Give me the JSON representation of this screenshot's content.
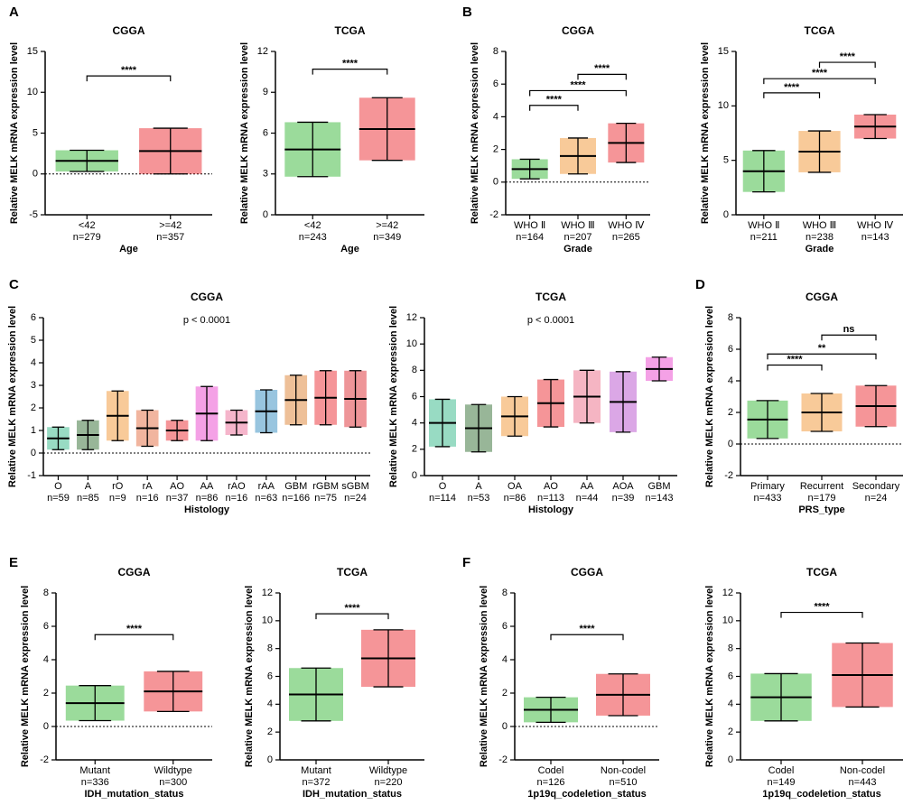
{
  "panels": [
    "A",
    "B",
    "C",
    "D",
    "E",
    "F"
  ],
  "chart_data": [
    {
      "type": "dot_summary",
      "title": "CGGA",
      "ylabel": "Relative MELK mRNA expression level",
      "xlabel": "Age",
      "categories": [
        "<42",
        ">=42"
      ],
      "n_labels": [
        "n=279",
        "n=357"
      ],
      "colors": [
        "#22b022",
        "#e8141b"
      ],
      "values": [
        1.6,
        2.8
      ],
      "sd": [
        1.3,
        2.8
      ],
      "ylim": [
        -5,
        15
      ],
      "yticks": [
        -5,
        0,
        5,
        10,
        15
      ],
      "reference_line": 0,
      "brackets": [
        {
          "from": 0,
          "to": 1,
          "y": 12,
          "label": "****"
        }
      ]
    },
    {
      "type": "dot_summary",
      "title": "TCGA",
      "ylabel": "Relative MELK mRNA expression level",
      "xlabel": "Age",
      "categories": [
        "<42",
        ">=42"
      ],
      "n_labels": [
        "n=243",
        "n=349"
      ],
      "colors": [
        "#22b022",
        "#e8141b"
      ],
      "values": [
        4.8,
        6.3
      ],
      "sd": [
        2.0,
        2.3
      ],
      "ylim": [
        0,
        12
      ],
      "yticks": [
        0,
        3,
        6,
        9,
        12
      ],
      "brackets": [
        {
          "from": 0,
          "to": 1,
          "y": 10.7,
          "label": "****"
        }
      ]
    },
    {
      "type": "dot_summary",
      "title": "CGGA",
      "ylabel": "Relative MELK mRNA expression level",
      "xlabel": "Grade",
      "categories": [
        "WHO Ⅱ",
        "WHO Ⅲ",
        "WHO Ⅳ"
      ],
      "n_labels": [
        "n=164",
        "n=207",
        "n=265"
      ],
      "colors": [
        "#22b022",
        "#f08a1c",
        "#e8141b"
      ],
      "values": [
        0.8,
        1.6,
        2.4
      ],
      "sd": [
        0.6,
        1.1,
        1.2
      ],
      "ylim": [
        -2,
        8
      ],
      "yticks": [
        -2,
        0,
        2,
        4,
        6,
        8
      ],
      "reference_line": 0,
      "brackets": [
        {
          "from": 0,
          "to": 1,
          "y": 4.7,
          "label": "****"
        },
        {
          "from": 0,
          "to": 2,
          "y": 5.6,
          "label": "****"
        },
        {
          "from": 1,
          "to": 2,
          "y": 6.6,
          "label": "****"
        }
      ]
    },
    {
      "type": "dot_summary",
      "title": "TCGA",
      "ylabel": "Relative MELK mRNA expression level",
      "xlabel": "Grade",
      "categories": [
        "WHO Ⅱ",
        "WHO Ⅲ",
        "WHO Ⅳ"
      ],
      "n_labels": [
        "n=211",
        "n=238",
        "n=143"
      ],
      "colors": [
        "#22b022",
        "#f08a1c",
        "#e8141b"
      ],
      "values": [
        4.0,
        5.8,
        8.1
      ],
      "sd": [
        1.9,
        1.9,
        1.1
      ],
      "ylim": [
        0,
        15
      ],
      "yticks": [
        0,
        5,
        10,
        15
      ],
      "brackets": [
        {
          "from": 0,
          "to": 1,
          "y": 11.2,
          "label": "****"
        },
        {
          "from": 0,
          "to": 2,
          "y": 12.5,
          "label": "****"
        },
        {
          "from": 1,
          "to": 2,
          "y": 14,
          "label": "****"
        }
      ]
    },
    {
      "type": "dot_summary",
      "title": "CGGA",
      "annotation": "p < 0.0001",
      "ylabel": "Relative MELK mRNA expression level",
      "xlabel": "Histology",
      "categories": [
        "O",
        "A",
        "rO",
        "rA",
        "AO",
        "AA",
        "rAO",
        "rAA",
        "GBM",
        "rGBM",
        "sGBM"
      ],
      "n_labels": [
        "n=59",
        "n=85",
        "n=9",
        "n=16",
        "n=37",
        "n=86",
        "n=16",
        "n=63",
        "n=166",
        "n=75",
        "n=24"
      ],
      "colors": [
        "#1bb07a",
        "#1a5e1a",
        "#f08a1c",
        "#e05a2a",
        "#e8141b",
        "#e62fc8",
        "#e85a8c",
        "#1a7fb8",
        "#d9731a",
        "#e8141b",
        "#d9141b"
      ],
      "values": [
        0.65,
        0.8,
        1.65,
        1.1,
        1.0,
        1.75,
        1.35,
        1.85,
        2.35,
        2.45,
        2.4
      ],
      "sd": [
        0.5,
        0.65,
        1.1,
        0.8,
        0.45,
        1.2,
        0.55,
        0.95,
        1.1,
        1.2,
        1.25
      ],
      "ylim": [
        -1,
        6
      ],
      "yticks": [
        -1,
        0,
        1,
        2,
        3,
        4,
        5,
        6
      ],
      "reference_line": 0,
      "brackets": []
    },
    {
      "type": "dot_summary",
      "title": "TCGA",
      "annotation": "p < 0.0001",
      "ylabel": "Relative MELK mRNA expression level",
      "xlabel": "Histology",
      "categories": [
        "O",
        "A",
        "OA",
        "AO",
        "AA",
        "AOA",
        "GBM"
      ],
      "n_labels": [
        "n=114",
        "n=53",
        "n=86",
        "n=113",
        "n=44",
        "n=39",
        "n=143"
      ],
      "colors": [
        "#1bb07a",
        "#1a5e1a",
        "#f08a1c",
        "#e8141b",
        "#e85a7a",
        "#b03cc8",
        "#e62fc8"
      ],
      "values": [
        4.0,
        3.6,
        4.5,
        5.5,
        6.0,
        5.6,
        8.1
      ],
      "sd": [
        1.8,
        1.8,
        1.5,
        1.8,
        2.0,
        2.3,
        0.9
      ],
      "ylim": [
        0,
        12
      ],
      "yticks": [
        0,
        2,
        4,
        6,
        8,
        10,
        12
      ],
      "brackets": []
    },
    {
      "type": "dot_summary",
      "title": "CGGA",
      "ylabel": "Relative MELK mRNA expression level",
      "xlabel": "PRS_type",
      "categories": [
        "Primary",
        "Recurrent",
        "Secondary"
      ],
      "n_labels": [
        "n=433",
        "n=179",
        "n=24"
      ],
      "colors": [
        "#22b022",
        "#f08a1c",
        "#e8141b"
      ],
      "values": [
        1.55,
        2.0,
        2.4
      ],
      "sd": [
        1.2,
        1.2,
        1.3
      ],
      "ylim": [
        -2,
        8
      ],
      "yticks": [
        -2,
        0,
        2,
        4,
        6,
        8
      ],
      "reference_line": 0,
      "brackets": [
        {
          "from": 0,
          "to": 1,
          "y": 5.0,
          "label": "****"
        },
        {
          "from": 0,
          "to": 2,
          "y": 5.7,
          "label": "**"
        },
        {
          "from": 1,
          "to": 2,
          "y": 6.9,
          "label": "ns"
        }
      ]
    },
    {
      "type": "dot_summary",
      "title": "CGGA",
      "ylabel": "Relative MELK mRNA expression level",
      "xlabel": "IDH_mutation_status",
      "categories": [
        "Mutant",
        "Wildtype"
      ],
      "n_labels": [
        "n=336",
        "n=300"
      ],
      "colors": [
        "#22b022",
        "#e8141b"
      ],
      "values": [
        1.4,
        2.1
      ],
      "sd": [
        1.05,
        1.2
      ],
      "ylim": [
        -2,
        8
      ],
      "yticks": [
        -2,
        0,
        2,
        4,
        6,
        8
      ],
      "reference_line": 0,
      "brackets": [
        {
          "from": 0,
          "to": 1,
          "y": 5.5,
          "label": "****"
        }
      ]
    },
    {
      "type": "dot_summary",
      "title": "TCGA",
      "ylabel": "Relative MELK mRNA expression level",
      "xlabel": "IDH_mutation_status",
      "categories": [
        "Mutant",
        "Wildtype"
      ],
      "n_labels": [
        "n=372",
        "n=220"
      ],
      "colors": [
        "#22b022",
        "#e8141b"
      ],
      "values": [
        4.7,
        7.3
      ],
      "sd": [
        1.9,
        2.05
      ],
      "ylim": [
        0,
        12
      ],
      "yticks": [
        0,
        2,
        4,
        6,
        8,
        10,
        12
      ],
      "brackets": [
        {
          "from": 0,
          "to": 1,
          "y": 10.5,
          "label": "****"
        }
      ]
    },
    {
      "type": "dot_summary",
      "title": "CGGA",
      "ylabel": "Relative MELK mRNA expression level",
      "xlabel": "1p19q_codeletion_status",
      "categories": [
        "Codel",
        "Non-codel"
      ],
      "n_labels": [
        "n=126",
        "n=510"
      ],
      "colors": [
        "#22b022",
        "#e8141b"
      ],
      "values": [
        1.0,
        1.9
      ],
      "sd": [
        0.75,
        1.25
      ],
      "ylim": [
        -2,
        8
      ],
      "yticks": [
        -2,
        0,
        2,
        4,
        6,
        8
      ],
      "reference_line": 0,
      "brackets": [
        {
          "from": 0,
          "to": 1,
          "y": 5.5,
          "label": "****"
        }
      ]
    },
    {
      "type": "dot_summary",
      "title": "TCGA",
      "ylabel": "Relative MELK mRNA expression level",
      "xlabel": "1p19q_codeletion_status",
      "categories": [
        "Codel",
        "Non-codel"
      ],
      "n_labels": [
        "n=149",
        "n=443"
      ],
      "colors": [
        "#22b022",
        "#e8141b"
      ],
      "values": [
        4.5,
        6.1
      ],
      "sd": [
        1.7,
        2.3
      ],
      "ylim": [
        0,
        12
      ],
      "yticks": [
        0,
        2,
        4,
        6,
        8,
        10,
        12
      ],
      "brackets": [
        {
          "from": 0,
          "to": 1,
          "y": 10.6,
          "label": "****"
        }
      ]
    }
  ]
}
